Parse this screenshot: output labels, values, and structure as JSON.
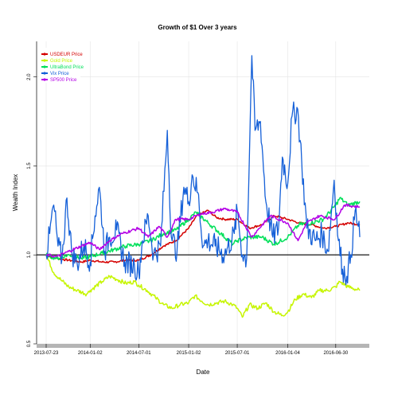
{
  "chart_data": {
    "type": "line",
    "title": "Growth of $1 Over 3 years",
    "xlabel": "Date",
    "ylabel": "Wealth Index",
    "x_range": [
      "2013-07-23",
      "2016-09-27"
    ],
    "x_ticks": [
      "2013-07-23",
      "2014-01-02",
      "2014-07-01",
      "2015-01-02",
      "2015-07-01",
      "2016-01-04",
      "2016-06-30"
    ],
    "ylim": [
      0.5,
      2.2
    ],
    "y_ticks": [
      0.5,
      1.0,
      1.5,
      2.0
    ],
    "y_tick_labels": [
      "0.5",
      "1.0",
      "1.5",
      "2.0"
    ],
    "reference_line": 1.0,
    "grid": true,
    "legend_position": "top-left",
    "series": [
      {
        "name": "USDEUR Price",
        "color": "#d40000",
        "points": [
          [
            "2013-07-23",
            1.0
          ],
          [
            "2013-09-01",
            0.98
          ],
          [
            "2013-10-15",
            0.97
          ],
          [
            "2013-12-01",
            0.96
          ],
          [
            "2014-01-02",
            0.97
          ],
          [
            "2014-02-15",
            0.96
          ],
          [
            "2014-04-01",
            0.96
          ],
          [
            "2014-05-15",
            0.97
          ],
          [
            "2014-07-01",
            0.97
          ],
          [
            "2014-08-15",
            1.0
          ],
          [
            "2014-10-01",
            1.05
          ],
          [
            "2014-11-15",
            1.08
          ],
          [
            "2015-01-02",
            1.15
          ],
          [
            "2015-02-01",
            1.22
          ],
          [
            "2015-03-15",
            1.25
          ],
          [
            "2015-04-15",
            1.21
          ],
          [
            "2015-05-15",
            1.2
          ],
          [
            "2015-07-01",
            1.2
          ],
          [
            "2015-08-15",
            1.15
          ],
          [
            "2015-10-01",
            1.17
          ],
          [
            "2015-11-15",
            1.22
          ],
          [
            "2016-01-04",
            1.2
          ],
          [
            "2016-02-15",
            1.18
          ],
          [
            "2016-04-01",
            1.17
          ],
          [
            "2016-05-15",
            1.15
          ],
          [
            "2016-06-30",
            1.16
          ],
          [
            "2016-08-15",
            1.18
          ],
          [
            "2016-09-27",
            1.17
          ]
        ]
      },
      {
        "name": "Gold Price",
        "color": "#c6f500",
        "points": [
          [
            "2013-07-23",
            1.0
          ],
          [
            "2013-08-20",
            0.9
          ],
          [
            "2013-09-15",
            0.86
          ],
          [
            "2013-10-15",
            0.82
          ],
          [
            "2013-11-15",
            0.8
          ],
          [
            "2013-12-20",
            0.78
          ],
          [
            "2014-01-02",
            0.8
          ],
          [
            "2014-02-15",
            0.85
          ],
          [
            "2014-03-15",
            0.88
          ],
          [
            "2014-04-15",
            0.86
          ],
          [
            "2014-05-15",
            0.84
          ],
          [
            "2014-06-15",
            0.85
          ],
          [
            "2014-07-01",
            0.83
          ],
          [
            "2014-08-01",
            0.8
          ],
          [
            "2014-09-01",
            0.76
          ],
          [
            "2014-10-01",
            0.72
          ],
          [
            "2014-11-01",
            0.7
          ],
          [
            "2014-12-01",
            0.72
          ],
          [
            "2015-01-02",
            0.73
          ],
          [
            "2015-01-25",
            0.77
          ],
          [
            "2015-02-20",
            0.74
          ],
          [
            "2015-03-15",
            0.72
          ],
          [
            "2015-04-15",
            0.73
          ],
          [
            "2015-05-15",
            0.74
          ],
          [
            "2015-06-15",
            0.72
          ],
          [
            "2015-07-01",
            0.7
          ],
          [
            "2015-07-20",
            0.65
          ],
          [
            "2015-08-15",
            0.72
          ],
          [
            "2015-09-15",
            0.7
          ],
          [
            "2015-10-15",
            0.73
          ],
          [
            "2015-11-15",
            0.68
          ],
          [
            "2015-12-15",
            0.66
          ],
          [
            "2016-01-04",
            0.68
          ],
          [
            "2016-02-01",
            0.75
          ],
          [
            "2016-03-01",
            0.78
          ],
          [
            "2016-04-01",
            0.76
          ],
          [
            "2016-05-01",
            0.8
          ],
          [
            "2016-06-01",
            0.8
          ],
          [
            "2016-06-30",
            0.82
          ],
          [
            "2016-07-15",
            0.85
          ],
          [
            "2016-08-15",
            0.82
          ],
          [
            "2016-09-27",
            0.8
          ]
        ]
      },
      {
        "name": "UltraBond Price",
        "color": "#00e05a",
        "points": [
          [
            "2013-07-23",
            1.0
          ],
          [
            "2013-09-01",
            0.98
          ],
          [
            "2013-10-15",
            1.0
          ],
          [
            "2013-12-01",
            0.98
          ],
          [
            "2014-01-02",
            0.99
          ],
          [
            "2014-02-15",
            1.01
          ],
          [
            "2014-04-01",
            1.03
          ],
          [
            "2014-05-15",
            1.05
          ],
          [
            "2014-07-01",
            1.06
          ],
          [
            "2014-08-15",
            1.08
          ],
          [
            "2014-10-01",
            1.12
          ],
          [
            "2014-11-15",
            1.14
          ],
          [
            "2015-01-02",
            1.2
          ],
          [
            "2015-01-30",
            1.24
          ],
          [
            "2015-03-15",
            1.18
          ],
          [
            "2015-05-01",
            1.12
          ],
          [
            "2015-06-15",
            1.06
          ],
          [
            "2015-07-01",
            1.08
          ],
          [
            "2015-08-15",
            1.1
          ],
          [
            "2015-10-01",
            1.1
          ],
          [
            "2015-11-15",
            1.06
          ],
          [
            "2016-01-04",
            1.1
          ],
          [
            "2016-02-15",
            1.17
          ],
          [
            "2016-04-01",
            1.18
          ],
          [
            "2016-05-15",
            1.2
          ],
          [
            "2016-06-30",
            1.28
          ],
          [
            "2016-07-15",
            1.32
          ],
          [
            "2016-08-15",
            1.28
          ],
          [
            "2016-09-27",
            1.3
          ]
        ]
      },
      {
        "name": "Vix Price",
        "color": "#1560d8",
        "points": [
          [
            "2013-07-23",
            1.0
          ],
          [
            "2013-08-05",
            1.12
          ],
          [
            "2013-08-20",
            1.28
          ],
          [
            "2013-09-05",
            1.05
          ],
          [
            "2013-09-20",
            0.98
          ],
          [
            "2013-10-08",
            1.32
          ],
          [
            "2013-10-25",
            1.02
          ],
          [
            "2013-11-15",
            0.95
          ],
          [
            "2013-12-10",
            1.06
          ],
          [
            "2014-01-02",
            0.96
          ],
          [
            "2014-01-20",
            1.22
          ],
          [
            "2014-02-05",
            1.38
          ],
          [
            "2014-02-25",
            1.02
          ],
          [
            "2014-03-15",
            1.1
          ],
          [
            "2014-04-10",
            1.14
          ],
          [
            "2014-05-10",
            0.96
          ],
          [
            "2014-06-15",
            0.94
          ],
          [
            "2014-07-01",
            0.9
          ],
          [
            "2014-07-15",
            1.08
          ],
          [
            "2014-08-05",
            1.22
          ],
          [
            "2014-08-25",
            1.0
          ],
          [
            "2014-09-20",
            1.05
          ],
          [
            "2014-10-15",
            1.7
          ],
          [
            "2014-10-30",
            1.1
          ],
          [
            "2014-11-20",
            1.02
          ],
          [
            "2014-12-15",
            1.38
          ],
          [
            "2015-01-02",
            1.3
          ],
          [
            "2015-01-15",
            1.45
          ],
          [
            "2015-02-05",
            1.35
          ],
          [
            "2015-02-25",
            1.05
          ],
          [
            "2015-03-15",
            1.08
          ],
          [
            "2015-04-10",
            1.05
          ],
          [
            "2015-05-15",
            1.0
          ],
          [
            "2015-06-20",
            1.12
          ],
          [
            "2015-07-01",
            1.25
          ],
          [
            "2015-07-20",
            1.0
          ],
          [
            "2015-08-05",
            0.98
          ],
          [
            "2015-08-24",
            2.12
          ],
          [
            "2015-09-05",
            1.7
          ],
          [
            "2015-09-25",
            1.75
          ],
          [
            "2015-10-15",
            1.3
          ],
          [
            "2015-11-10",
            1.1
          ],
          [
            "2015-12-01",
            1.15
          ],
          [
            "2015-12-15",
            1.55
          ],
          [
            "2016-01-04",
            1.4
          ],
          [
            "2016-01-20",
            1.78
          ],
          [
            "2016-02-10",
            1.82
          ],
          [
            "2016-02-25",
            1.52
          ],
          [
            "2016-03-15",
            1.15
          ],
          [
            "2016-04-15",
            1.08
          ],
          [
            "2016-05-10",
            1.12
          ],
          [
            "2016-06-01",
            1.02
          ],
          [
            "2016-06-24",
            1.42
          ],
          [
            "2016-07-10",
            1.08
          ],
          [
            "2016-07-25",
            0.92
          ],
          [
            "2016-08-10",
            0.88
          ],
          [
            "2016-08-25",
            1.0
          ],
          [
            "2016-09-10",
            1.25
          ],
          [
            "2016-09-27",
            1.1
          ]
        ]
      },
      {
        "name": "SP500 Price",
        "color": "#b400e6",
        "points": [
          [
            "2013-07-23",
            1.0
          ],
          [
            "2013-09-01",
            0.99
          ],
          [
            "2013-10-15",
            1.02
          ],
          [
            "2013-12-01",
            1.05
          ],
          [
            "2014-01-02",
            1.07
          ],
          [
            "2014-02-05",
            1.03
          ],
          [
            "2014-03-15",
            1.08
          ],
          [
            "2014-05-01",
            1.12
          ],
          [
            "2014-07-01",
            1.15
          ],
          [
            "2014-08-05",
            1.1
          ],
          [
            "2014-09-15",
            1.16
          ],
          [
            "2014-10-15",
            1.1
          ],
          [
            "2014-11-15",
            1.2
          ],
          [
            "2015-01-02",
            1.2
          ],
          [
            "2015-02-15",
            1.23
          ],
          [
            "2015-04-01",
            1.24
          ],
          [
            "2015-05-15",
            1.26
          ],
          [
            "2015-07-01",
            1.24
          ],
          [
            "2015-08-24",
            1.1
          ],
          [
            "2015-09-15",
            1.14
          ],
          [
            "2015-11-01",
            1.22
          ],
          [
            "2016-01-04",
            1.18
          ],
          [
            "2016-02-11",
            1.08
          ],
          [
            "2016-03-15",
            1.18
          ],
          [
            "2016-05-01",
            1.22
          ],
          [
            "2016-06-27",
            1.2
          ],
          [
            "2016-08-01",
            1.28
          ],
          [
            "2016-09-27",
            1.27
          ]
        ]
      }
    ]
  }
}
